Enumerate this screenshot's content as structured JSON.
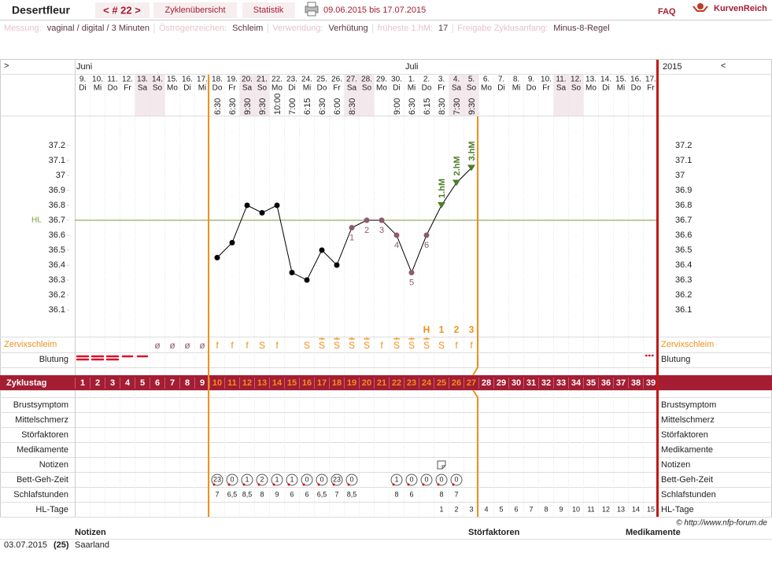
{
  "header": {
    "user": "Desertfleur",
    "cycle": "< # 22 >",
    "tabs": [
      "Zyklenübersicht",
      "Statistik"
    ],
    "period": "09.06.2015 bis 17.07.2015",
    "faq": "FAQ",
    "logo": "KurvenReich"
  },
  "info": [
    {
      "label": "Messung:",
      "value": "vaginal / digital / 3 Minuten"
    },
    {
      "label": "Östrogenzeichen:",
      "value": "Schleim"
    },
    {
      "label": "Verwendung:",
      "value": "Verhütung"
    },
    {
      "label": "früheste 1.hM:",
      "value": "17"
    },
    {
      "label": "Freigabe Zyklusanfang:",
      "value": "Minus-8-Regel"
    }
  ],
  "chart_data": {
    "type": "line",
    "nav_left": ">",
    "nav_right": "<",
    "year": "2015",
    "months": [
      "Juni",
      null,
      null,
      null,
      null,
      null,
      null,
      null,
      null,
      null,
      null,
      null,
      null,
      null,
      null,
      null,
      null,
      null,
      null,
      null,
      null,
      null,
      "Juli",
      null,
      null,
      null,
      null,
      null,
      null,
      null,
      null,
      null,
      null,
      null,
      null,
      null,
      null,
      null,
      null
    ],
    "categories": [
      "9.",
      "10.",
      "11.",
      "12.",
      "13.",
      "14.",
      "15.",
      "16.",
      "17.",
      "18.",
      "19.",
      "20.",
      "21.",
      "22.",
      "23.",
      "24.",
      "25.",
      "26.",
      "27.",
      "28.",
      "29.",
      "30.",
      "1.",
      "2.",
      "3.",
      "4.",
      "5.",
      "6.",
      "7.",
      "8.",
      "9.",
      "10.",
      "11.",
      "12.",
      "13.",
      "14.",
      "15.",
      "16.",
      "17."
    ],
    "weekdays": [
      "Di",
      "Mi",
      "Do",
      "Fr",
      "Sa",
      "So",
      "Mo",
      "Di",
      "Mi",
      "Do",
      "Fr",
      "Sa",
      "So",
      "Mo",
      "Di",
      "Mi",
      "Do",
      "Fr",
      "Sa",
      "So",
      "Mo",
      "Di",
      "Mi",
      "Do",
      "Fr",
      "Sa",
      "So",
      "Mo",
      "Di",
      "Mi",
      "Do",
      "Fr",
      "Sa",
      "So",
      "Mo",
      "Di",
      "Mi",
      "Do",
      "Fr"
    ],
    "times": [
      null,
      null,
      null,
      null,
      null,
      null,
      null,
      null,
      null,
      "6:30",
      "6:30",
      "9:30",
      "9:30",
      "10:00",
      "7:00",
      "6:15",
      "6:30",
      "6:00",
      "8:30",
      null,
      null,
      "9:00",
      "6:30",
      "6:15",
      "8:30",
      "7:30",
      "9:30",
      null,
      null,
      null,
      null,
      null,
      null,
      null,
      null,
      null,
      null,
      null,
      null
    ],
    "series": [
      {
        "color": "#000000",
        "values": [
          null,
          null,
          null,
          null,
          null,
          null,
          null,
          null,
          null,
          36.45,
          36.55,
          36.8,
          36.75,
          36.8,
          36.35,
          36.3,
          36.5,
          36.4,
          36.65,
          36.7,
          36.7,
          36.6,
          36.35,
          36.6,
          36.8,
          36.95,
          37.05,
          null,
          null,
          null,
          null,
          null,
          null,
          null,
          null,
          null,
          null,
          null,
          null
        ]
      }
    ],
    "low_labels": [
      null,
      null,
      null,
      null,
      null,
      null,
      null,
      null,
      null,
      null,
      null,
      null,
      null,
      null,
      null,
      null,
      null,
      null,
      "1",
      "2",
      "3",
      "4",
      "5",
      "6",
      null,
      null,
      null,
      null,
      null,
      null,
      null,
      null,
      null,
      null,
      null,
      null,
      null,
      null,
      null
    ],
    "hm_labels": [
      null,
      null,
      null,
      null,
      null,
      null,
      null,
      null,
      null,
      null,
      null,
      null,
      null,
      null,
      null,
      null,
      null,
      null,
      null,
      null,
      null,
      null,
      null,
      null,
      "1.hM",
      "2.hM",
      "3.hM",
      null,
      null,
      null,
      null,
      null,
      null,
      null,
      null,
      null,
      null,
      null,
      null
    ],
    "peak_labels": [
      null,
      null,
      null,
      null,
      null,
      null,
      null,
      null,
      null,
      null,
      null,
      null,
      null,
      null,
      null,
      null,
      null,
      null,
      null,
      null,
      null,
      null,
      null,
      "H",
      "1",
      "2",
      "3",
      null,
      null,
      null,
      null,
      null,
      null,
      null,
      null,
      null,
      null,
      null,
      null
    ],
    "ylim": [
      36.0,
      37.3
    ],
    "yticks": [
      36.1,
      36.2,
      36.3,
      36.4,
      36.5,
      36.6,
      36.7,
      36.8,
      36.9,
      37,
      37.1,
      37.2
    ],
    "hl": {
      "value": 36.7,
      "label": "HL"
    },
    "hl_color": "#7a9a3a",
    "low_color": "#8f5a6a",
    "hm_color": "#4e7d2a"
  },
  "cervix": {
    "label": "Zervixschleim",
    "symbols": [
      null,
      null,
      null,
      null,
      null,
      "ø",
      "ø",
      "ø",
      "ø",
      "f",
      "f",
      "f",
      "S",
      "f",
      null,
      "S",
      "S",
      "S",
      "S",
      "S",
      "f",
      "S",
      "S",
      "S",
      "S",
      "f",
      "f",
      null,
      null,
      null,
      null,
      null,
      null,
      null,
      null,
      null,
      null,
      null,
      null
    ],
    "plus": [
      null,
      null,
      null,
      null,
      null,
      null,
      null,
      null,
      null,
      null,
      null,
      null,
      null,
      null,
      null,
      null,
      "+",
      "+",
      "+",
      "+",
      null,
      "+",
      "+",
      "+",
      null,
      null,
      null,
      null,
      null,
      null,
      null,
      null,
      null,
      null,
      null,
      null,
      null,
      null,
      null
    ]
  },
  "bleeding_label": "Blutung",
  "cycle_label": "Zyklustag",
  "cycle_days": [
    1,
    2,
    3,
    4,
    5,
    6,
    7,
    8,
    9,
    10,
    11,
    12,
    13,
    14,
    15,
    16,
    17,
    18,
    19,
    20,
    21,
    22,
    23,
    24,
    25,
    26,
    27,
    28,
    29,
    30,
    31,
    32,
    33,
    34,
    35,
    36,
    37,
    38,
    39
  ],
  "rows": {
    "labels": [
      "Brustsymptom",
      "Mittelschmerz",
      "Störfaktoren",
      "Medikamente",
      "Notizen",
      "Bett-Geh-Zeit",
      "Schlafstunden",
      "HL-Tage"
    ],
    "bed_times": [
      null,
      null,
      null,
      null,
      null,
      null,
      null,
      null,
      null,
      23,
      0,
      1,
      2,
      1,
      1,
      0,
      0,
      23,
      0,
      null,
      null,
      1,
      0,
      0,
      0,
      0,
      null,
      null,
      null,
      null,
      null,
      null,
      null,
      null,
      null,
      null,
      null,
      null,
      null
    ],
    "sleep": [
      null,
      null,
      null,
      null,
      null,
      null,
      null,
      null,
      null,
      7,
      "6,5",
      "8,5",
      8,
      9,
      6,
      6,
      "6,5",
      7,
      "8,5",
      null,
      null,
      8,
      6,
      null,
      8,
      7,
      null,
      null,
      null,
      null,
      null,
      null,
      null,
      null,
      null,
      null,
      null,
      null,
      null
    ],
    "hl_days": [
      null,
      null,
      null,
      null,
      null,
      null,
      null,
      null,
      null,
      null,
      null,
      null,
      null,
      null,
      null,
      null,
      null,
      null,
      null,
      null,
      null,
      null,
      null,
      null,
      1,
      2,
      3,
      4,
      5,
      6,
      7,
      8,
      9,
      10,
      11,
      12,
      13,
      14,
      15
    ]
  },
  "footer": {
    "copyright": "© http://www.nfp-forum.de",
    "columns": [
      "Notizen",
      "Störfaktoren",
      "Medikamente"
    ],
    "entries": [
      {
        "date": "03.07.2015",
        "day": "(25)",
        "text": "Saarland"
      }
    ]
  }
}
